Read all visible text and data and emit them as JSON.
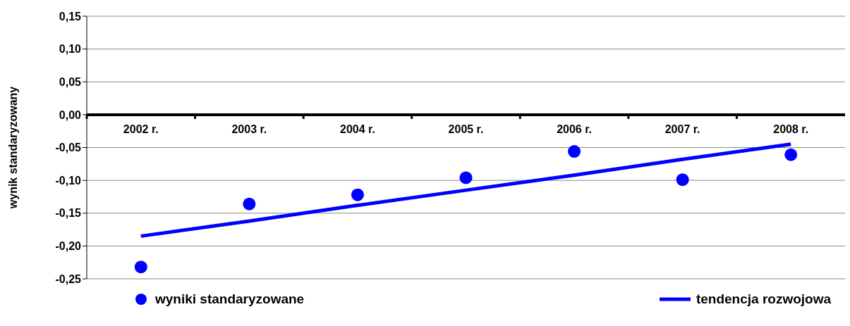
{
  "chart_data": {
    "type": "scatter",
    "ylabel": "wynik standaryzowany",
    "categories": [
      "2002 r.",
      "2003 r.",
      "2004 r.",
      "2005 r.",
      "2006 r.",
      "2007 r.",
      "2008 r."
    ],
    "series": [
      {
        "name": "wyniki standaryzowane",
        "marker": "circle",
        "color": "#0000ff",
        "values": [
          -0.232,
          -0.136,
          -0.122,
          -0.096,
          -0.056,
          -0.099,
          -0.061
        ]
      },
      {
        "name": "tendencja rozwojowa",
        "type": "line",
        "marker": "none",
        "line_style": "solid",
        "color": "#0000ff",
        "values": [
          -0.185,
          -0.162,
          -0.138,
          -0.115,
          -0.092,
          -0.068,
          -0.045
        ]
      }
    ],
    "ylim": [
      -0.25,
      0.15
    ],
    "yticks": [
      {
        "value": -0.25,
        "label": "-0,25"
      },
      {
        "value": -0.2,
        "label": "-0,20"
      },
      {
        "value": -0.15,
        "label": "-0,15"
      },
      {
        "value": -0.1,
        "label": "-0,10"
      },
      {
        "value": -0.05,
        "label": "-0,05"
      },
      {
        "value": 0,
        "label": "0,00"
      },
      {
        "value": 0.05,
        "label": "0,05"
      },
      {
        "value": 0.1,
        "label": "0,10"
      },
      {
        "value": 0.15,
        "label": "0,15"
      }
    ],
    "grid": "y",
    "legend": "bottom"
  }
}
